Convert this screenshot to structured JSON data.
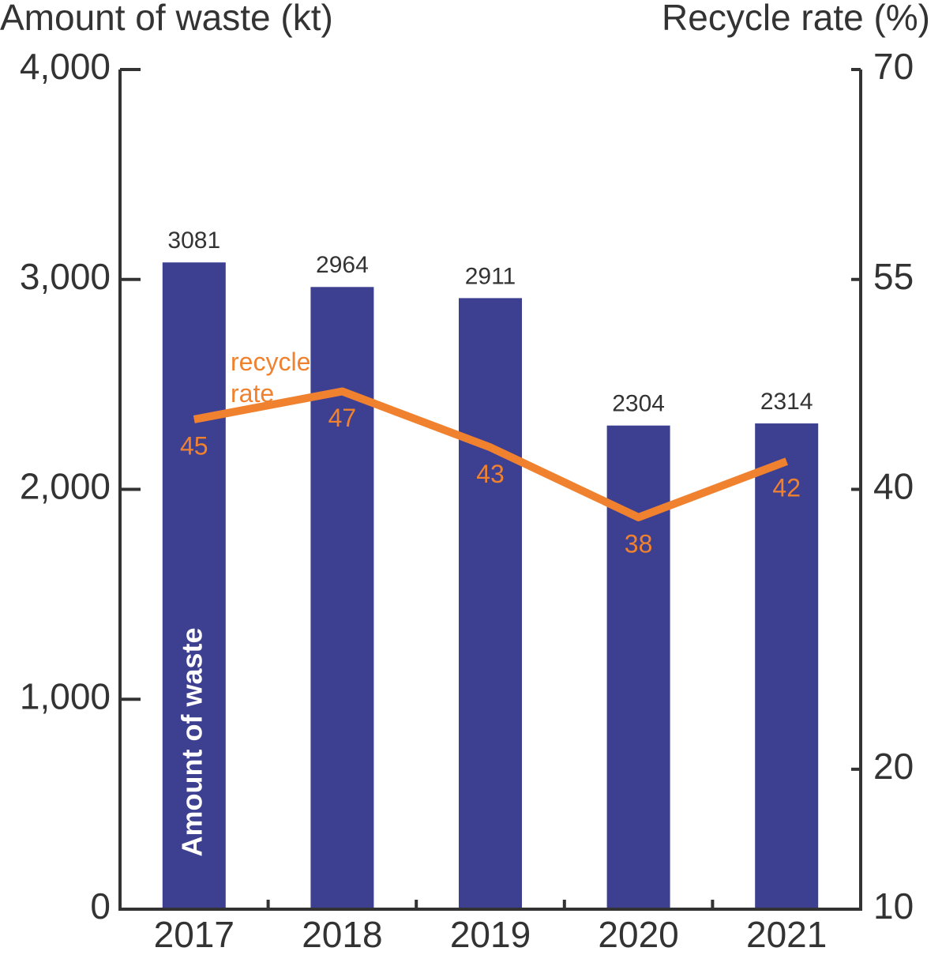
{
  "chart_data": {
    "type": "bar-line",
    "y_label": "Amount of waste (kt)",
    "y2_label": "Recycle rate (%)",
    "categories": [
      "2017",
      "2018",
      "2019",
      "2020",
      "2021"
    ],
    "series": [
      {
        "name": "Amount of waste",
        "type": "bar",
        "color": "#3d3f91",
        "values": [
          3081,
          2964,
          2911,
          2304,
          2314
        ]
      },
      {
        "name": "recycle rate",
        "type": "line",
        "axis": "y2",
        "color": "#f0822f",
        "values": [
          45,
          47,
          43,
          38,
          42
        ]
      }
    ],
    "ylim": [
      0,
      4000
    ],
    "yticks": [
      0,
      {
        "value": 1000,
        "label": "1,000"
      },
      {
        "value": 2000,
        "label": "2,000"
      },
      {
        "value": 3000,
        "label": "3,000"
      },
      {
        "value": 4000,
        "label": "4,000"
      }
    ],
    "y2lim": [
      10,
      70
    ],
    "y2ticks": [
      10,
      20,
      40,
      55,
      70
    ]
  }
}
